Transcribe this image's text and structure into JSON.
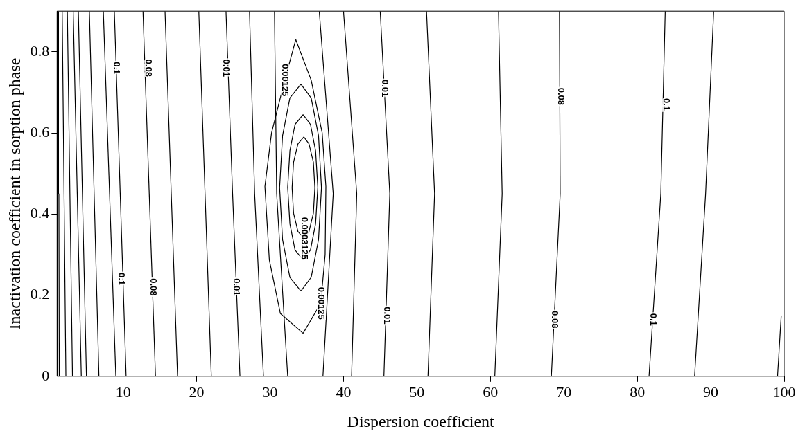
{
  "chart_data": {
    "type": "line",
    "xlabel": "Dispersion coefficient",
    "ylabel": "Inactivation coefficient in sorption phase",
    "xlim": [
      1,
      100
    ],
    "ylim": [
      0,
      0.9
    ],
    "xticks": [
      10,
      20,
      30,
      40,
      50,
      60,
      70,
      80,
      90,
      100
    ],
    "yticks": [
      0,
      0.2,
      0.4,
      0.6,
      0.8
    ],
    "grid": false,
    "legend": false,
    "marker": "none",
    "line_style": "solid",
    "series": [
      {
        "color": "#000000",
        "x": [
          1.3,
          1.25,
          1.2
        ],
        "values": [
          0,
          0.45,
          0.9
        ]
      },
      {
        "color": "#000000",
        "x": [
          2.2,
          1.95,
          1.7
        ],
        "values": [
          0,
          0.45,
          0.9
        ]
      },
      {
        "color": "#000000",
        "x": [
          3.1,
          2.75,
          2.4
        ],
        "values": [
          0,
          0.45,
          0.9
        ]
      },
      {
        "color": "#000000",
        "x": [
          4.3,
          3.75,
          3.2
        ],
        "values": [
          0,
          0.45,
          0.9
        ]
      },
      {
        "color": "#000000",
        "x": [
          5.0,
          4.45,
          3.9
        ],
        "values": [
          0,
          0.45,
          0.9
        ]
      },
      {
        "color": "#000000",
        "x": [
          6.7,
          6.05,
          5.4
        ],
        "values": [
          0,
          0.45,
          0.9
        ]
      },
      {
        "color": "#000000",
        "x": [
          9.0,
          8.15,
          7.3
        ],
        "values": [
          0,
          0.45,
          0.9
        ]
      },
      {
        "color": "#000000",
        "x": [
          10.4,
          9.6,
          8.8
        ],
        "values": [
          0,
          0.45,
          0.9
        ]
      },
      {
        "color": "#000000",
        "x": [
          14.4,
          13.55,
          12.7
        ],
        "values": [
          0,
          0.45,
          0.9
        ]
      },
      {
        "color": "#000000",
        "x": [
          17.4,
          16.55,
          15.7
        ],
        "values": [
          0,
          0.45,
          0.9
        ]
      },
      {
        "color": "#000000",
        "x": [
          22.0,
          21.15,
          20.3
        ],
        "values": [
          0,
          0.45,
          0.9
        ]
      },
      {
        "color": "#000000",
        "x": [
          25.9,
          24.9,
          24.0
        ],
        "values": [
          0,
          0.45,
          0.9
        ]
      },
      {
        "color": "#000000",
        "x": [
          29.1,
          27.9,
          27.2
        ],
        "values": [
          0,
          0.45,
          0.9
        ]
      },
      {
        "color": "#000000",
        "x": [
          32.4,
          30.9,
          30.6
        ],
        "values": [
          0,
          0.45,
          0.9
        ]
      },
      {
        "color": "#000000",
        "x": [
          37.2,
          38.6,
          36.7
        ],
        "values": [
          0,
          0.45,
          0.9
        ]
      },
      {
        "color": "#000000",
        "x": [
          41.1,
          41.8,
          40.0
        ],
        "values": [
          0,
          0.45,
          0.9
        ]
      },
      {
        "color": "#000000",
        "x": [
          45.5,
          46.3,
          45.0
        ],
        "values": [
          0,
          0.45,
          0.9
        ]
      },
      {
        "color": "#000000",
        "x": [
          51.5,
          52.4,
          51.3
        ],
        "values": [
          0,
          0.45,
          0.9
        ]
      },
      {
        "color": "#000000",
        "x": [
          60.6,
          61.6,
          61.1
        ],
        "values": [
          0,
          0.45,
          0.9
        ]
      },
      {
        "color": "#000000",
        "x": [
          68.3,
          69.5,
          69.4
        ],
        "values": [
          0,
          0.45,
          0.9
        ]
      },
      {
        "color": "#000000",
        "x": [
          81.6,
          83.2,
          83.8
        ],
        "values": [
          0,
          0.45,
          0.9
        ]
      },
      {
        "color": "#000000",
        "x": [
          87.8,
          89.3,
          90.4
        ],
        "values": [
          0,
          0.45,
          0.9
        ]
      },
      {
        "color": "#000000",
        "x": [
          99.1,
          99.6
        ],
        "values": [
          0,
          0.15
        ]
      },
      {
        "color": "#000000",
        "x": [
          33.5,
          35.6,
          37.1,
          37.6,
          37.5,
          36.9,
          34.5
        ],
        "values": [
          0.83,
          0.73,
          0.6,
          0.468,
          0.3,
          0.18,
          0.106
        ]
      },
      {
        "color": "#000000",
        "x": [
          33.5,
          32.0,
          30.2,
          29.3,
          29.9,
          31.4,
          34.5
        ],
        "values": [
          0.83,
          0.73,
          0.6,
          0.468,
          0.287,
          0.155,
          0.106
        ]
      },
      {
        "color": "#000000",
        "x": [
          34.2,
          35.6,
          36.6,
          37.0,
          36.6,
          35.6,
          34.2
        ],
        "values": [
          0.72,
          0.686,
          0.593,
          0.465,
          0.337,
          0.244,
          0.21
        ]
      },
      {
        "color": "#000000",
        "x": [
          34.2,
          32.7,
          31.7,
          31.3,
          31.7,
          32.7,
          34.2
        ],
        "values": [
          0.72,
          0.686,
          0.593,
          0.465,
          0.337,
          0.244,
          0.21
        ]
      },
      {
        "color": "#000000",
        "x": [
          34.5,
          35.5,
          36.2,
          36.5,
          36.2,
          35.5,
          34.5
        ],
        "values": [
          0.645,
          0.621,
          0.556,
          0.466,
          0.376,
          0.311,
          0.287
        ]
      },
      {
        "color": "#000000",
        "x": [
          34.5,
          33.4,
          32.7,
          32.4,
          32.7,
          33.4,
          34.5
        ],
        "values": [
          0.645,
          0.621,
          0.556,
          0.466,
          0.376,
          0.311,
          0.287
        ]
      },
      {
        "color": "#000000",
        "x": [
          34.6,
          35.3,
          35.9,
          36.1,
          35.9,
          35.3,
          34.6
        ],
        "values": [
          0.59,
          0.573,
          0.528,
          0.465,
          0.402,
          0.357,
          0.34
        ]
      },
      {
        "color": "#000000",
        "x": [
          34.6,
          33.8,
          33.2,
          33.0,
          33.2,
          33.8,
          34.6
        ],
        "values": [
          0.59,
          0.573,
          0.528,
          0.465,
          0.402,
          0.357,
          0.34
        ]
      }
    ],
    "annotations": [
      {
        "text": "0.1",
        "x": 9.05,
        "y": 0.76
      },
      {
        "text": "0.08",
        "x": 13.4,
        "y": 0.76
      },
      {
        "text": "0.01",
        "x": 24.0,
        "y": 0.76
      },
      {
        "text": "0.00125",
        "x": 32.0,
        "y": 0.73
      },
      {
        "text": "0.01",
        "x": 45.55,
        "y": 0.71
      },
      {
        "text": "0.08",
        "x": 69.6,
        "y": 0.69
      },
      {
        "text": "0.1",
        "x": 83.9,
        "y": 0.67
      },
      {
        "text": "0.0003125",
        "x": 34.6,
        "y": 0.34
      },
      {
        "text": "0.1",
        "x": 9.7,
        "y": 0.24
      },
      {
        "text": "0.08",
        "x": 14.1,
        "y": 0.22
      },
      {
        "text": "0.01",
        "x": 25.4,
        "y": 0.22
      },
      {
        "text": "0.00125",
        "x": 36.9,
        "y": 0.18
      },
      {
        "text": "0.01",
        "x": 45.9,
        "y": 0.15
      },
      {
        "text": "0.08",
        "x": 68.7,
        "y": 0.14
      },
      {
        "text": "0.1",
        "x": 82.1,
        "y": 0.14
      }
    ]
  }
}
